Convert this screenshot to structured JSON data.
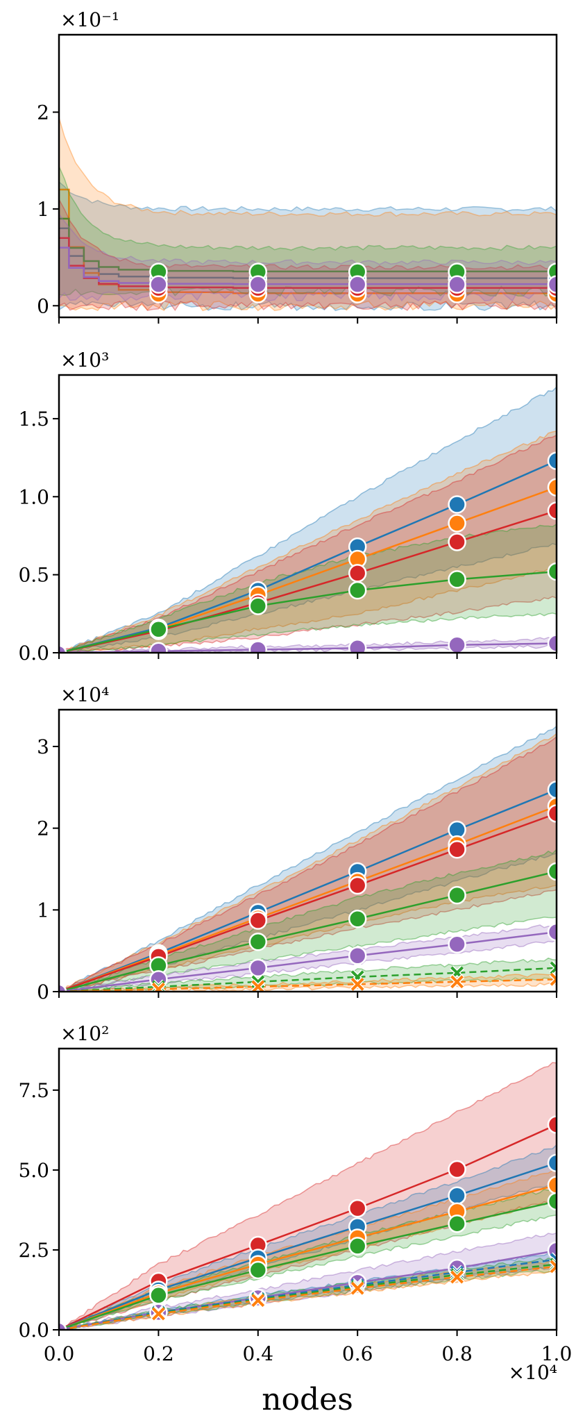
{
  "colors": {
    "blue": "#1f77b4",
    "orange": "#ff7f0e",
    "green": "#2ca02c",
    "red": "#d62728",
    "purple": "#9467bd"
  },
  "chart_data": [
    {
      "type": "line",
      "title": "",
      "xlabel": "",
      "ylabel": "",
      "scale_label": "×10⁻¹",
      "xlim": [
        0,
        1.0
      ],
      "ylim": [
        -0.12,
        2.8
      ],
      "yticks": [
        0,
        1,
        2
      ],
      "ytick_labels": [
        "0",
        "1",
        "2"
      ],
      "x_markers": [
        0.2,
        0.4,
        0.6,
        0.8,
        1.0
      ],
      "series": [
        {
          "name": "blue",
          "color": "#1f77b4",
          "marker": "o",
          "values": [
            0.28,
            0.28,
            0.28,
            0.28,
            0.28
          ],
          "band": [
            0.0,
            1.0
          ],
          "start": 0.8
        },
        {
          "name": "orange",
          "color": "#ff7f0e",
          "marker": "o",
          "values": [
            0.12,
            0.12,
            0.12,
            0.12,
            0.12
          ],
          "band": [
            0.0,
            0.95
          ],
          "start": 1.2
        },
        {
          "name": "green",
          "color": "#2ca02c",
          "marker": "o",
          "values": [
            0.35,
            0.35,
            0.35,
            0.35,
            0.35
          ],
          "band": [
            0.15,
            0.6
          ],
          "start": 0.9
        },
        {
          "name": "red",
          "color": "#d62728",
          "marker": "o",
          "values": [
            0.18,
            0.18,
            0.18,
            0.18,
            0.18
          ],
          "band": [
            0.0,
            0.4
          ],
          "start": 0.7
        },
        {
          "name": "purple",
          "color": "#9467bd",
          "marker": "o",
          "values": [
            0.22,
            0.22,
            0.22,
            0.22,
            0.22
          ],
          "band": [
            0.1,
            0.45
          ],
          "start": 0.6
        }
      ]
    },
    {
      "type": "line",
      "title": "",
      "xlabel": "",
      "ylabel": "",
      "scale_label": "×10³",
      "xlim": [
        0,
        1.0
      ],
      "ylim": [
        0,
        1.78
      ],
      "yticks": [
        0,
        0.5,
        1.0,
        1.5
      ],
      "ytick_labels": [
        "0.0",
        "0.5",
        "1.0",
        "1.5"
      ],
      "x_markers": [
        0.2,
        0.4,
        0.6,
        0.8,
        1.0
      ],
      "series": [
        {
          "name": "blue",
          "color": "#1f77b4",
          "marker": "o",
          "values": [
            0.16,
            0.4,
            0.68,
            0.95,
            1.23
          ],
          "band_low": [
            0.1,
            0.25,
            0.4,
            0.55,
            0.7
          ],
          "band_high": [
            0.25,
            0.62,
            1.0,
            1.36,
            1.7
          ]
        },
        {
          "name": "orange",
          "color": "#ff7f0e",
          "marker": "o",
          "values": [
            0.15,
            0.37,
            0.6,
            0.83,
            1.06
          ],
          "band_low": [
            0.05,
            0.15,
            0.25,
            0.4,
            0.55
          ],
          "band_high": [
            0.24,
            0.55,
            0.85,
            1.15,
            1.42
          ]
        },
        {
          "name": "red",
          "color": "#d62728",
          "marker": "o",
          "values": [
            0.14,
            0.32,
            0.51,
            0.71,
            0.91
          ],
          "band_low": [
            0.04,
            0.1,
            0.18,
            0.26,
            0.36
          ],
          "band_high": [
            0.22,
            0.52,
            0.82,
            1.1,
            1.4
          ]
        },
        {
          "name": "green",
          "color": "#2ca02c",
          "marker": "o",
          "values": [
            0.15,
            0.3,
            0.4,
            0.47,
            0.52
          ],
          "band_low": [
            0.05,
            0.12,
            0.18,
            0.22,
            0.25
          ],
          "band_high": [
            0.22,
            0.45,
            0.62,
            0.74,
            0.82
          ]
        },
        {
          "name": "purple",
          "color": "#9467bd",
          "marker": "o",
          "values": [
            0.01,
            0.02,
            0.03,
            0.05,
            0.06
          ],
          "band_low": [
            0.0,
            0.01,
            0.02,
            0.03,
            0.04
          ],
          "band_high": [
            0.02,
            0.04,
            0.05,
            0.07,
            0.09
          ]
        }
      ]
    },
    {
      "type": "line",
      "title": "",
      "xlabel": "",
      "ylabel": "",
      "scale_label": "×10⁴",
      "xlim": [
        0,
        1.0
      ],
      "ylim": [
        0,
        3.45
      ],
      "yticks": [
        0,
        1,
        2,
        3
      ],
      "ytick_labels": [
        "0",
        "1",
        "2",
        "3"
      ],
      "x_markers": [
        0.2,
        0.4,
        0.6,
        0.8,
        1.0
      ],
      "series": [
        {
          "name": "blue",
          "color": "#1f77b4",
          "marker": "o",
          "values": [
            0.47,
            0.97,
            1.47,
            1.98,
            2.47
          ],
          "band_low": [
            0.3,
            0.65,
            1.0,
            1.35,
            1.7
          ],
          "band_high": [
            0.62,
            1.3,
            1.95,
            2.6,
            3.25
          ]
        },
        {
          "name": "orange",
          "color": "#ff7f0e",
          "marker": "o",
          "values": [
            0.45,
            0.9,
            1.35,
            1.8,
            2.27
          ],
          "band_low": [
            0.28,
            0.55,
            0.85,
            1.1,
            1.3
          ],
          "band_high": [
            0.6,
            1.22,
            1.85,
            2.5,
            3.15
          ]
        },
        {
          "name": "red",
          "color": "#d62728",
          "marker": "o",
          "values": [
            0.43,
            0.87,
            1.3,
            1.74,
            2.18
          ],
          "band_low": [
            0.26,
            0.52,
            0.78,
            1.0,
            1.25
          ],
          "band_high": [
            0.58,
            1.18,
            1.8,
            2.45,
            3.1
          ]
        },
        {
          "name": "green",
          "color": "#2ca02c",
          "marker": "o",
          "values": [
            0.32,
            0.61,
            0.89,
            1.18,
            1.47
          ],
          "band_low": [
            0.2,
            0.38,
            0.56,
            0.74,
            0.92
          ],
          "band_high": [
            0.4,
            0.78,
            1.15,
            1.45,
            1.72
          ]
        },
        {
          "name": "purple",
          "color": "#9467bd",
          "marker": "o",
          "values": [
            0.15,
            0.29,
            0.44,
            0.58,
            0.73
          ],
          "band_low": [
            0.1,
            0.22,
            0.35,
            0.48,
            0.62
          ],
          "band_high": [
            0.2,
            0.36,
            0.52,
            0.67,
            0.82
          ]
        },
        {
          "name": "green-dashed",
          "color": "#2ca02c",
          "marker": "x",
          "dashed": true,
          "values": [
            0.06,
            0.12,
            0.18,
            0.23,
            0.29
          ],
          "band_low": [
            0.03,
            0.07,
            0.1,
            0.13,
            0.16
          ],
          "band_high": [
            0.1,
            0.18,
            0.26,
            0.33,
            0.4
          ]
        },
        {
          "name": "orange-dashed",
          "color": "#ff7f0e",
          "marker": "x",
          "dashed": true,
          "values": [
            0.03,
            0.06,
            0.09,
            0.12,
            0.15
          ],
          "band_low": [
            0.01,
            0.03,
            0.05,
            0.07,
            0.09
          ],
          "band_high": [
            0.05,
            0.09,
            0.13,
            0.17,
            0.21
          ]
        }
      ]
    },
    {
      "type": "line",
      "title": "",
      "xlabel": "nodes",
      "ylabel": "",
      "scale_label": "×10²",
      "x_scale_label": "×10⁴",
      "xlim": [
        0,
        1.0
      ],
      "ylim": [
        0,
        8.8
      ],
      "yticks": [
        0,
        2.5,
        5.0,
        7.5
      ],
      "ytick_labels": [
        "0.0",
        "2.5",
        "5.0",
        "7.5"
      ],
      "xticks": [
        0,
        0.2,
        0.4,
        0.6,
        0.8,
        1.0
      ],
      "xtick_labels": [
        "0.0",
        "0.2",
        "0.4",
        "0.6",
        "0.8",
        "1.0"
      ],
      "x_markers": [
        0.2,
        0.4,
        0.6,
        0.8,
        1.0
      ],
      "series": [
        {
          "name": "red",
          "color": "#d62728",
          "marker": "o",
          "values": [
            1.52,
            2.65,
            3.8,
            5.02,
            6.42
          ],
          "band_low": [
            0.9,
            1.7,
            2.5,
            3.3,
            4.1
          ],
          "band_high": [
            2.05,
            3.6,
            5.2,
            6.8,
            8.4
          ]
        },
        {
          "name": "blue",
          "color": "#1f77b4",
          "marker": "o",
          "values": [
            1.25,
            2.25,
            3.23,
            4.2,
            5.22
          ],
          "band_low": [
            1.05,
            1.95,
            2.85,
            3.75,
            4.6
          ],
          "band_high": [
            1.45,
            2.55,
            3.6,
            4.65,
            5.75
          ]
        },
        {
          "name": "orange",
          "color": "#ff7f0e",
          "marker": "o",
          "values": [
            1.15,
            2.05,
            2.88,
            3.7,
            4.53
          ],
          "band_low": [
            0.98,
            1.8,
            2.55,
            3.3,
            4.05
          ],
          "band_high": [
            1.32,
            2.3,
            3.2,
            4.1,
            5.0
          ]
        },
        {
          "name": "green",
          "color": "#2ca02c",
          "marker": "o",
          "values": [
            1.08,
            1.87,
            2.62,
            3.32,
            4.02
          ],
          "band_low": [
            0.92,
            1.62,
            2.3,
            2.95,
            3.58
          ],
          "band_high": [
            1.24,
            2.12,
            2.95,
            3.7,
            4.45
          ]
        },
        {
          "name": "purple",
          "color": "#9467bd",
          "marker": "o",
          "values": [
            0.55,
            1.0,
            1.48,
            1.93,
            2.48
          ],
          "band_low": [
            0.42,
            0.82,
            1.2,
            1.6,
            1.95
          ],
          "band_high": [
            0.7,
            1.25,
            1.85,
            2.45,
            3.05
          ]
        },
        {
          "name": "blue-dashed",
          "color": "#1f77b4",
          "marker": "x",
          "dashed": true,
          "values": [
            0.55,
            0.98,
            1.4,
            1.8,
            2.2
          ],
          "band_low": [
            0.48,
            0.88,
            1.28,
            1.65,
            2.0
          ],
          "band_high": [
            0.62,
            1.08,
            1.52,
            1.95,
            2.4
          ]
        },
        {
          "name": "green-dashed",
          "color": "#2ca02c",
          "marker": "x",
          "dashed": true,
          "values": [
            0.52,
            0.95,
            1.35,
            1.72,
            2.05
          ],
          "band_low": [
            0.45,
            0.85,
            1.22,
            1.58,
            1.88
          ],
          "band_high": [
            0.6,
            1.05,
            1.48,
            1.88,
            2.25
          ]
        },
        {
          "name": "orange-dashed",
          "color": "#ff7f0e",
          "marker": "x",
          "dashed": true,
          "values": [
            0.5,
            0.92,
            1.3,
            1.65,
            1.98
          ],
          "band_low": [
            0.43,
            0.82,
            1.18,
            1.52,
            1.82
          ],
          "band_high": [
            0.57,
            1.02,
            1.42,
            1.8,
            2.15
          ]
        }
      ]
    }
  ]
}
